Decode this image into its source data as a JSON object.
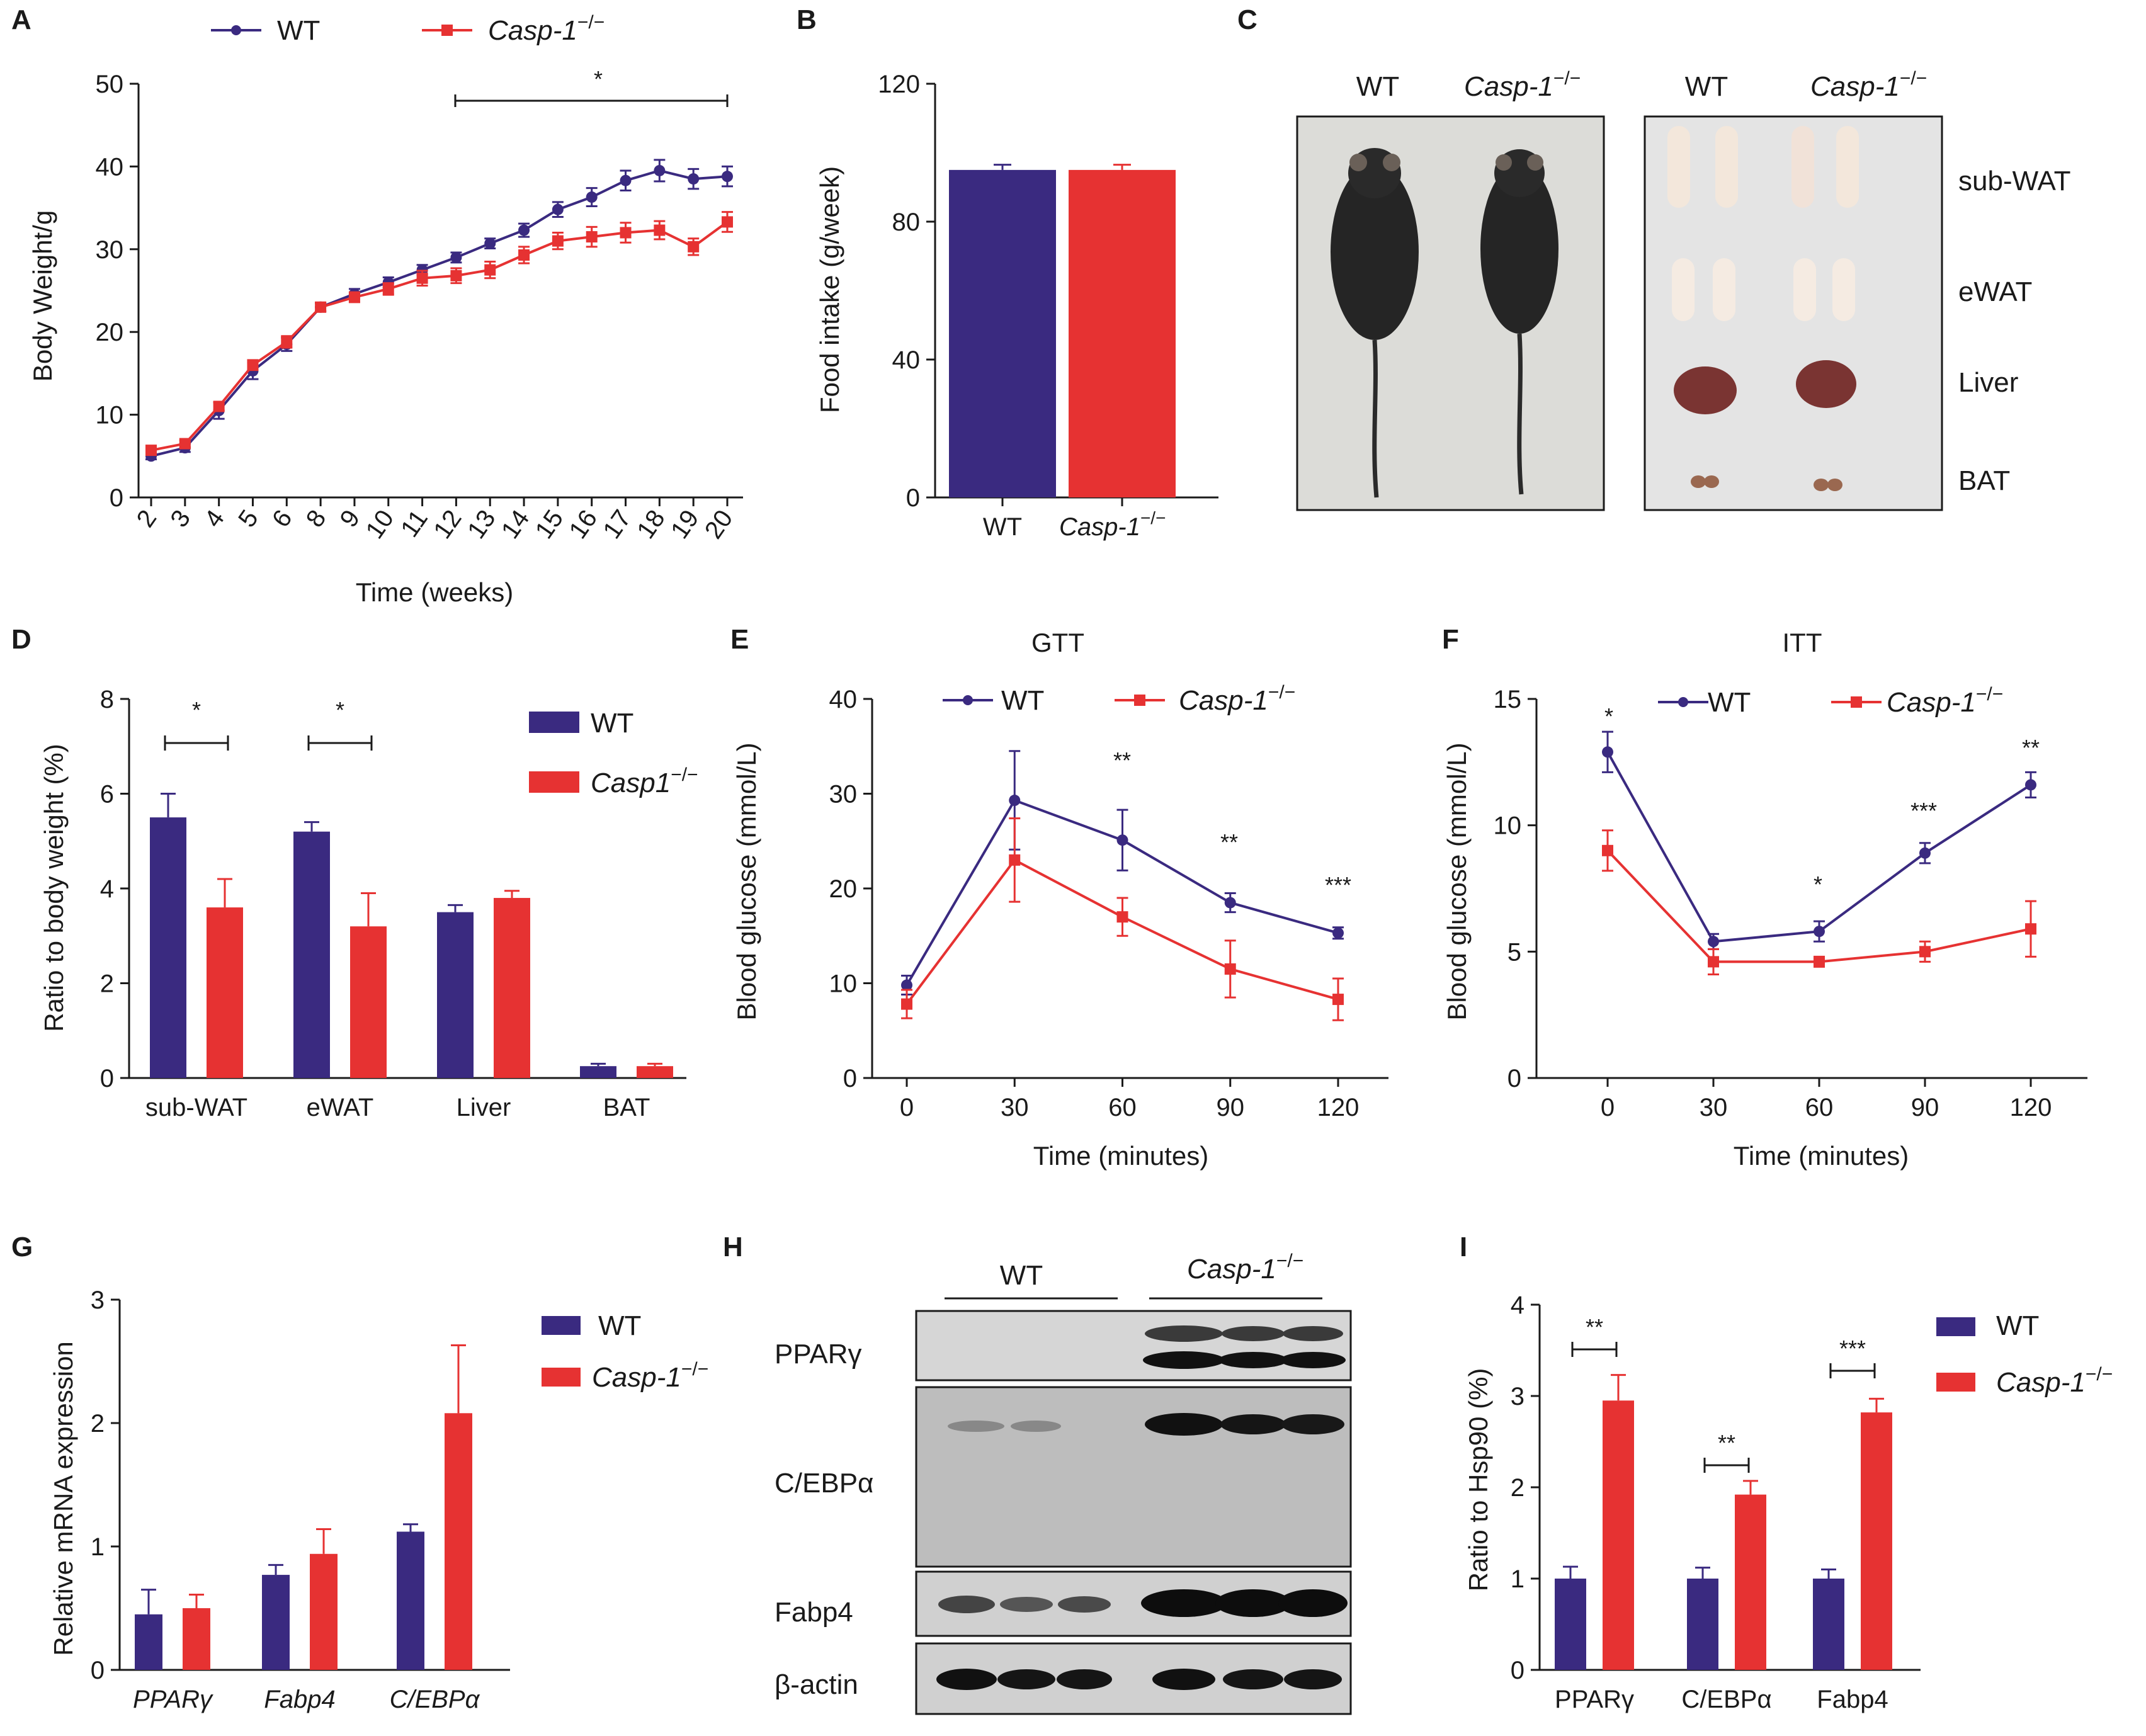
{
  "colors": {
    "wt": "#3a2a80",
    "ko": "#e63232",
    "axis": "#1a1a1a"
  },
  "legend": {
    "wt": "WT",
    "casp": "Casp-1",
    "casp1": "Casp1",
    "sup": "−/−"
  },
  "panels": {
    "A": {
      "label": "A",
      "ylabel": "Body Weight/g",
      "xlabel": "Time (weeks)",
      "sig": "*"
    },
    "B": {
      "label": "B",
      "ylabel": "Food intake (g/week)"
    },
    "C": {
      "label": "C",
      "col_wt": "WT",
      "col_ko": "Casp-1",
      "tissues": [
        "sub-WAT",
        "eWAT",
        "Liver",
        "BAT"
      ]
    },
    "D": {
      "label": "D",
      "ylabel": "Ratio to body weight (%)",
      "sig": [
        "*",
        "*"
      ]
    },
    "E": {
      "label": "E",
      "title": "GTT",
      "ylabel": "Blood glucose (mmol/L)",
      "xlabel": "Time (minutes)",
      "sig": [
        "**",
        "**",
        "***"
      ]
    },
    "F": {
      "label": "F",
      "title": "ITT",
      "ylabel": "Blood glucose (mmol/L)",
      "xlabel": "Time (minutes)",
      "sig": [
        "*",
        "*",
        "***",
        "**"
      ]
    },
    "G": {
      "label": "G",
      "ylabel": "Relative mRNA expression"
    },
    "H": {
      "label": "H",
      "group_wt": "WT",
      "group_ko": "Casp-1",
      "proteins": [
        "PPARγ",
        "C/EBPα",
        "Fabp4",
        "β-actin"
      ]
    },
    "I": {
      "label": "I",
      "ylabel": "Ratio to Hsp90 (%)",
      "sig": [
        "**",
        "**",
        "***"
      ]
    }
  },
  "chart_data": [
    {
      "id": "A",
      "type": "line",
      "title": "",
      "xlabel": "Time (weeks)",
      "ylabel": "Body Weight/g",
      "ylim": [
        0,
        50
      ],
      "yticks": [
        0,
        10,
        20,
        30,
        40,
        50
      ],
      "x": [
        "2",
        "3",
        "4",
        "5",
        "6",
        "8",
        "9",
        "10",
        "11",
        "12",
        "13",
        "14",
        "15",
        "16",
        "17",
        "18",
        "19",
        "20"
      ],
      "series": [
        {
          "name": "WT",
          "values": [
            5,
            6,
            10.5,
            15.3,
            18.5,
            23,
            24.6,
            26,
            27.5,
            29,
            30.7,
            32.3,
            34.8,
            36.3,
            38.3,
            39.5,
            38.5,
            38.8
          ],
          "err": [
            0.4,
            0.5,
            1.0,
            1.0,
            0.8,
            0.5,
            0.6,
            0.6,
            0.6,
            0.6,
            0.6,
            0.8,
            0.9,
            1.1,
            1.2,
            1.3,
            1.2,
            1.2
          ]
        },
        {
          "name": "Casp-1−/−",
          "values": [
            5.7,
            6.5,
            11,
            16,
            18.8,
            23,
            24.2,
            25.2,
            26.5,
            26.8,
            27.5,
            29.3,
            31,
            31.5,
            32,
            32.3,
            30.3,
            33.3
          ],
          "err": [
            0.4,
            0.4,
            0.5,
            0.6,
            0.7,
            0.5,
            0.6,
            0.7,
            0.9,
            0.9,
            1.0,
            1.0,
            1.0,
            1.2,
            1.2,
            1.1,
            1.0,
            1.2
          ]
        }
      ]
    },
    {
      "id": "B",
      "type": "bar",
      "title": "",
      "ylabel": "Food intake (g/week)",
      "ylim": [
        0,
        120
      ],
      "yticks": [
        0,
        40,
        80,
        120
      ],
      "categories": [
        "WT",
        "Casp-1−/−"
      ],
      "values": [
        95,
        95
      ],
      "err": [
        1.5,
        1.5
      ]
    },
    {
      "id": "D",
      "type": "bar",
      "title": "",
      "ylabel": "Ratio to body weight (%)",
      "ylim": [
        0,
        8
      ],
      "yticks": [
        0,
        2,
        4,
        6,
        8
      ],
      "categories": [
        "sub-WAT",
        "eWAT",
        "Liver",
        "BAT"
      ],
      "series": [
        {
          "name": "WT",
          "values": [
            5.5,
            5.2,
            3.5,
            0.25
          ],
          "err": [
            0.5,
            0.2,
            0.15,
            0.05
          ]
        },
        {
          "name": "Casp1−/−",
          "values": [
            3.6,
            3.2,
            3.8,
            0.25
          ],
          "err": [
            0.6,
            0.7,
            0.15,
            0.05
          ]
        }
      ]
    },
    {
      "id": "E",
      "type": "line",
      "title": "GTT",
      "xlabel": "Time (minutes)",
      "ylabel": "Blood glucose (mmol/L)",
      "ylim": [
        0,
        40
      ],
      "yticks": [
        0,
        10,
        20,
        30,
        40
      ],
      "x": [
        0,
        30,
        60,
        90,
        120
      ],
      "series": [
        {
          "name": "WT",
          "values": [
            9.8,
            29.3,
            25.1,
            18.5,
            15.3
          ],
          "err": [
            1.0,
            5.2,
            3.2,
            1.0,
            0.6
          ]
        },
        {
          "name": "Casp-1−/−",
          "values": [
            7.8,
            23,
            17,
            11.5,
            8.3
          ],
          "err": [
            1.5,
            4.4,
            2.0,
            3.0,
            2.2
          ]
        }
      ]
    },
    {
      "id": "F",
      "type": "line",
      "title": "ITT",
      "xlabel": "Time (minutes)",
      "ylabel": "Blood glucose (mmol/L)",
      "ylim": [
        0,
        15
      ],
      "yticks": [
        0,
        5,
        10,
        15
      ],
      "x": [
        0,
        30,
        60,
        90,
        120
      ],
      "series": [
        {
          "name": "WT",
          "values": [
            12.9,
            5.4,
            5.8,
            8.9,
            11.6
          ],
          "err": [
            0.8,
            0.3,
            0.4,
            0.4,
            0.5
          ]
        },
        {
          "name": "Casp-1−/−",
          "values": [
            9,
            4.6,
            4.6,
            5,
            5.9
          ],
          "err": [
            0.8,
            0.5,
            0.2,
            0.4,
            1.1
          ]
        }
      ]
    },
    {
      "id": "G",
      "type": "bar",
      "title": "",
      "ylabel": "Relative mRNA expression",
      "ylim": [
        0,
        3
      ],
      "yticks": [
        0,
        1,
        2,
        3
      ],
      "categories": [
        "PPARγ",
        "Fabp4",
        "C/EBPα"
      ],
      "series": [
        {
          "name": "WT",
          "values": [
            0.45,
            0.77,
            1.12
          ],
          "err": [
            0.2,
            0.08,
            0.06
          ]
        },
        {
          "name": "Casp-1−/−",
          "values": [
            0.5,
            0.94,
            2.08
          ],
          "err": [
            0.11,
            0.2,
            0.55
          ]
        }
      ]
    },
    {
      "id": "I",
      "type": "bar",
      "title": "",
      "ylabel": "Ratio to Hsp90 (%)",
      "ylim": [
        0,
        4
      ],
      "yticks": [
        0,
        1,
        2,
        3,
        4
      ],
      "categories": [
        "PPARγ",
        "C/EBPα",
        "Fabp4"
      ],
      "series": [
        {
          "name": "WT",
          "values": [
            1,
            1,
            1
          ],
          "err": [
            0.13,
            0.12,
            0.1
          ]
        },
        {
          "name": "Casp-1−/−",
          "values": [
            2.95,
            1.92,
            2.82
          ],
          "err": [
            0.28,
            0.15,
            0.15
          ]
        }
      ]
    }
  ]
}
